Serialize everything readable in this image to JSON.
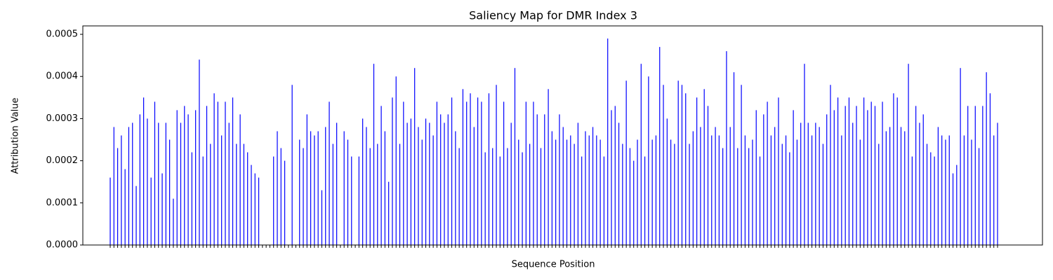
{
  "chart_data": {
    "type": "bar",
    "title": "Saliency Map for DMR Index 3",
    "xlabel": "Sequence Position",
    "ylabel": "Attribution Value",
    "color": "#0000ff",
    "categories": [
      null,
      null,
      null,
      null,
      null,
      null,
      null,
      null,
      null,
      null,
      null,
      null,
      null,
      null,
      null,
      null,
      null,
      null,
      null,
      null,
      null,
      null,
      null,
      null,
      null,
      null,
      null,
      null,
      null,
      null,
      null,
      null,
      null,
      null,
      null,
      null,
      null,
      null,
      null,
      null,
      null,
      null,
      null,
      null,
      null,
      null,
      null,
      null,
      null,
      null,
      null,
      null,
      null,
      null,
      null,
      null,
      null,
      null,
      null,
      null,
      null,
      null,
      null,
      null,
      null,
      null,
      null,
      null,
      null,
      null,
      null,
      null,
      null,
      null,
      null,
      null,
      null,
      null,
      null,
      null,
      null,
      null,
      null,
      null,
      null,
      null,
      null,
      null,
      null,
      null,
      null,
      null,
      null,
      null,
      null,
      null,
      null,
      null,
      null,
      null,
      null,
      null,
      null,
      null,
      null,
      null,
      null,
      null,
      null,
      null,
      null,
      null,
      null,
      null,
      null,
      null,
      null,
      null,
      null,
      null,
      null,
      null,
      null,
      null,
      null,
      null,
      null,
      null,
      null,
      null,
      null,
      null,
      null,
      null,
      null,
      null,
      null,
      null,
      null,
      null,
      null,
      null,
      null,
      null,
      null,
      null,
      null,
      null,
      null,
      null,
      null,
      null,
      null,
      null,
      null,
      null,
      null,
      null,
      null,
      null,
      null,
      null,
      null,
      null,
      null,
      null,
      null,
      null,
      null,
      null,
      null,
      null,
      null,
      null,
      null,
      null,
      null,
      null,
      null,
      null,
      null,
      null,
      null,
      null,
      null,
      null,
      null,
      null,
      null,
      null,
      null,
      null,
      null,
      null,
      null,
      null,
      null,
      null,
      null,
      null,
      null,
      null,
      null,
      null,
      null,
      null,
      null,
      null,
      null,
      null,
      null,
      null,
      null,
      null,
      null,
      null,
      null,
      null,
      null,
      null,
      null,
      null,
      null,
      null,
      null,
      null,
      null,
      null,
      null,
      null,
      null,
      null,
      null,
      null,
      null,
      null,
      null,
      null,
      null,
      null
    ],
    "values": [
      0.00016,
      0.00028,
      0.00023,
      0.00026,
      0.00018,
      0.00028,
      0.00029,
      0.00014,
      0.00031,
      0.00035,
      0.0003,
      0.00016,
      0.00034,
      0.00029,
      0.00017,
      0.00029,
      0.00025,
      0.00011,
      0.00032,
      0.00029,
      0.00033,
      0.00031,
      0.00022,
      0.00032,
      0.00044,
      0.00021,
      0.00033,
      0.00024,
      0.00036,
      0.00034,
      0.00026,
      0.00034,
      0.00029,
      0.00035,
      0.00024,
      0.00031,
      0.00024,
      0.00022,
      0.00019,
      0.00017,
      0.00016,
      0,
      0,
      0,
      0.00021,
      0.00027,
      0.00023,
      0.0002,
      0,
      0.00038,
      0,
      0.00025,
      0.00023,
      0.00031,
      0.00027,
      0.00026,
      0.00027,
      0.00013,
      0.00028,
      0.00034,
      0.00024,
      0.00029,
      0,
      0.00027,
      0.00025,
      0.00021,
      0,
      0.00021,
      0.0003,
      0.00028,
      0.00023,
      0.00043,
      0.00024,
      0.00033,
      0.00027,
      0.00015,
      0.00035,
      0.0004,
      0.00024,
      0.00034,
      0.00029,
      0.0003,
      0.00042,
      0.00028,
      0.00025,
      0.0003,
      0.00029,
      0.00026,
      0.00034,
      0.00031,
      0.00029,
      0.00031,
      0.00035,
      0.00027,
      0.00023,
      0.00037,
      0.00034,
      0.00036,
      0.00028,
      0.00035,
      0.00034,
      0.00022,
      0.00036,
      0.00023,
      0.00038,
      0.00021,
      0.00034,
      0.00023,
      0.00029,
      0.00042,
      0.00025,
      0.00022,
      0.00034,
      0.00024,
      0.00034,
      0.00031,
      0.00023,
      0.00031,
      0.00037,
      0.00027,
      0.00025,
      0.00031,
      0.00028,
      0.00025,
      0.00026,
      0.00024,
      0.00029,
      0.00021,
      0.00027,
      0.00026,
      0.00028,
      0.00026,
      0.00025,
      0.00021,
      0.00049,
      0.00032,
      0.00033,
      0.00029,
      0.00024,
      0.00039,
      0.00023,
      0.0002,
      0.00025,
      0.00043,
      0.00021,
      0.0004,
      0.00025,
      0.00026,
      0.00047,
      0.00038,
      0.0003,
      0.00025,
      0.00024,
      0.00039,
      0.00038,
      0.00036,
      0.00024,
      0.00027,
      0.00035,
      0.00028,
      0.00037,
      0.00033,
      0.00026,
      0.00028,
      0.00026,
      0.00023,
      0.00046,
      0.00028,
      0.00041,
      0.00023,
      0.00038,
      0.00026,
      0.00023,
      0.00025,
      0.00032,
      0.00021,
      0.00031,
      0.00034,
      0.00026,
      0.00028,
      0.00035,
      0.00024,
      0.00026,
      0.00022,
      0.00032,
      0.00025,
      0.00029,
      0.00043,
      0.00029,
      0.00026,
      0.00029,
      0.00028,
      0.00024,
      0.00031,
      0.00038,
      0.00032,
      0.00035,
      0.00026,
      0.00033,
      0.00035,
      0.00029,
      0.00033,
      0.00025,
      0.00035,
      0.00032,
      0.00034,
      0.00033,
      0.00024,
      0.00034,
      0.00027,
      0.00028,
      0.00036,
      0.00035,
      0.00028,
      0.00027,
      0.00043,
      0.00021,
      0.00033,
      0.00029,
      0.00031,
      0.00024,
      0.00022,
      0.00021,
      0.00028,
      0.00026,
      0.00025,
      0.00026,
      0.00017,
      0.00019,
      0.00042,
      0.00026,
      0.00033,
      0.00025,
      0.00033,
      0.00023,
      0.00033,
      0.00041,
      0.00036,
      0.00026,
      0.00029
    ],
    "ylim": [
      0,
      0.00052
    ],
    "yticks": [
      {
        "value": 0,
        "label": "0.0000"
      },
      {
        "value": 0.0001,
        "label": "0.0001"
      },
      {
        "value": 0.0002,
        "label": "0.0002"
      },
      {
        "value": 0.0003,
        "label": "0.0003"
      },
      {
        "value": 0.0004,
        "label": "0.0004"
      },
      {
        "value": 0.0005,
        "label": "0.0005"
      }
    ]
  }
}
